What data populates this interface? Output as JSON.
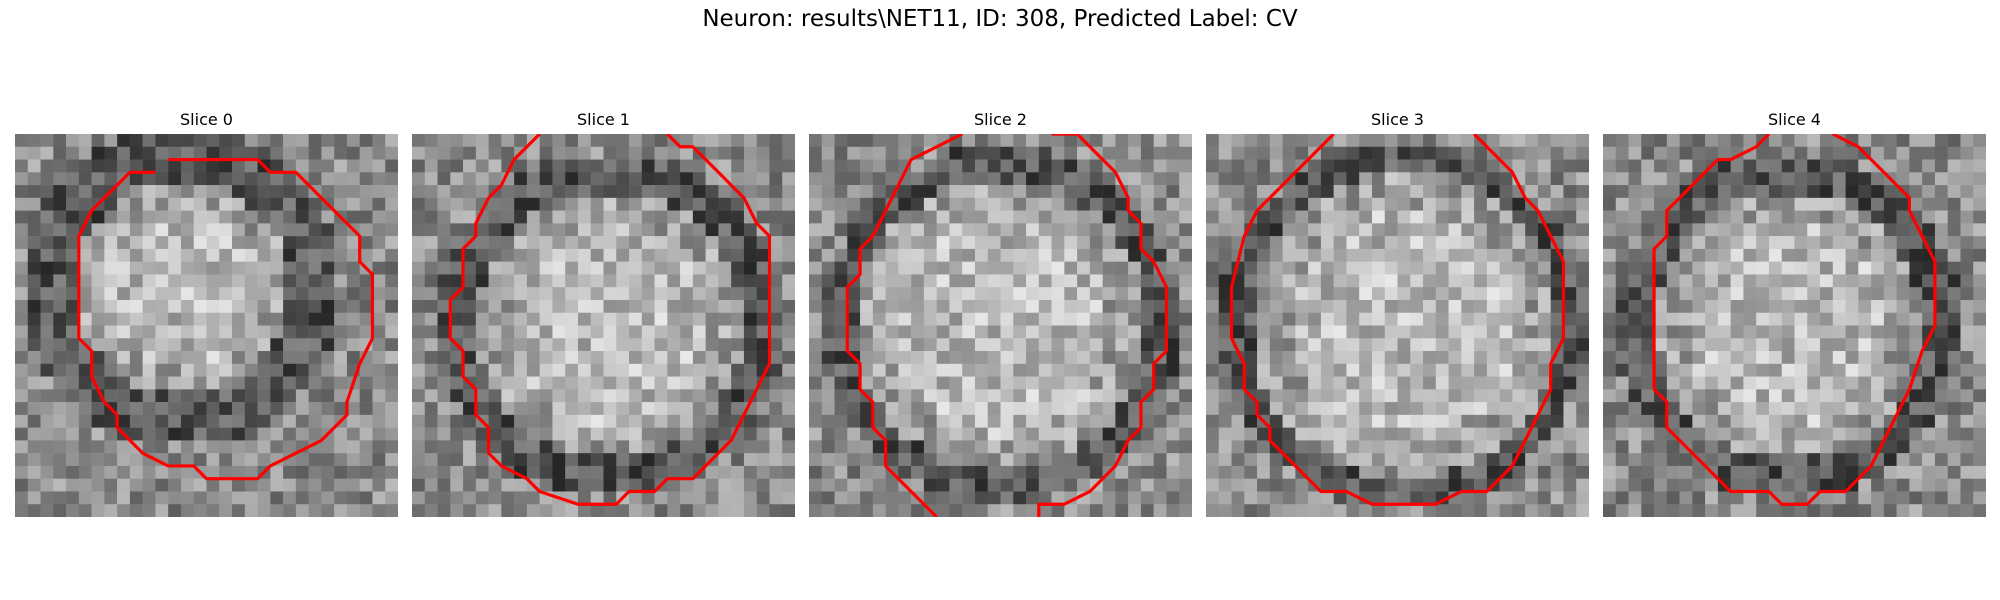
{
  "figure": {
    "title": "Neuron: results\\NET11, ID: 308, Predicted Label: CV"
  },
  "colors": {
    "contour": "#ff0000",
    "background": "#ffffff"
  },
  "panels": [
    {
      "title": "Slice 0"
    },
    {
      "title": "Slice 1"
    },
    {
      "title": "Slice 2"
    },
    {
      "title": "Slice 3"
    },
    {
      "title": "Slice 4"
    }
  ]
}
